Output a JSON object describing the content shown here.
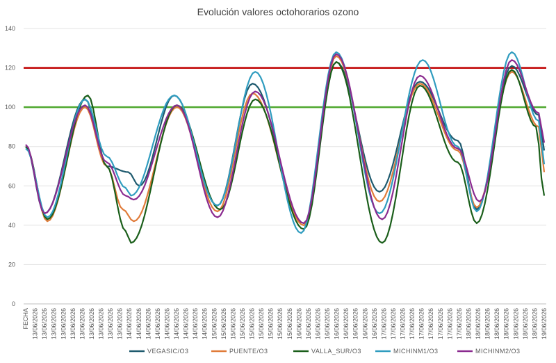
{
  "chart_data": {
    "type": "line",
    "title": "Evolución valores octohorarios ozono",
    "xlabel": "",
    "ylabel": "",
    "ylim": [
      0,
      140
    ],
    "yticks": [
      0,
      20,
      40,
      60,
      80,
      100,
      120,
      140
    ],
    "grid": true,
    "legend_position": "bottom",
    "x_labels": [
      "FECHA",
      "13/06/2026",
      "13/06/2026",
      "13/06/2026",
      "13/06/2026",
      "13/06/2026",
      "13/06/2026",
      "13/06/2026",
      "13/06/2026",
      "13/06/2026",
      "13/06/2026",
      "14/06/2026",
      "14/06/2026",
      "14/06/2026",
      "14/06/2026",
      "14/06/2026",
      "14/06/2026",
      "14/06/2026",
      "14/06/2026",
      "14/06/2026",
      "15/06/2026",
      "15/06/2026",
      "15/06/2026",
      "15/06/2026",
      "15/06/2026",
      "15/06/2026",
      "15/06/2026",
      "15/06/2026",
      "15/06/2026",
      "16/06/2026",
      "16/06/2026",
      "16/06/2026",
      "16/06/2026",
      "16/06/2026",
      "16/06/2026",
      "16/06/2026",
      "16/06/2026",
      "16/06/2026",
      "17/06/2026",
      "17/06/2026",
      "17/06/2026",
      "17/06/2026",
      "17/06/2026",
      "17/06/2026",
      "17/06/2026",
      "17/06/2026",
      "17/06/2026",
      "18/06/2026",
      "18/06/2026",
      "18/06/2026",
      "18/06/2026",
      "18/06/2026",
      "18/06/2026",
      "18/06/2026",
      "18/06/2026",
      "19/06/2026"
    ],
    "n_points": 150,
    "reference_lines": [
      {
        "value": 120,
        "color": "#c00000"
      },
      {
        "value": 100,
        "color": "#4ea72e"
      }
    ],
    "series": [
      {
        "name": "VEGASIC/O3",
        "color": "#1e5a6e",
        "keys": [
          [
            0,
            80
          ],
          [
            7,
            46
          ],
          [
            22,
            104
          ],
          [
            30,
            70
          ],
          [
            38,
            67
          ],
          [
            42,
            60
          ],
          [
            55,
            106
          ],
          [
            71,
            50
          ],
          [
            84,
            112
          ],
          [
            103,
            41
          ],
          [
            115,
            123
          ],
          [
            131,
            57
          ],
          [
            146,
            113
          ],
          [
            160,
            83
          ],
          [
            167,
            48
          ],
          [
            180,
            121
          ],
          [
            190,
            96
          ],
          [
            192,
            78
          ]
        ]
      },
      {
        "name": "PUENTE/O3",
        "color": "#e07b39",
        "keys": [
          [
            0,
            80
          ],
          [
            8,
            42
          ],
          [
            22,
            100
          ],
          [
            30,
            70
          ],
          [
            36,
            48
          ],
          [
            40,
            42
          ],
          [
            56,
            100
          ],
          [
            71,
            47
          ],
          [
            84,
            107
          ],
          [
            103,
            40
          ],
          [
            115,
            126
          ],
          [
            131,
            52
          ],
          [
            146,
            112
          ],
          [
            160,
            78
          ],
          [
            167,
            49
          ],
          [
            180,
            118
          ],
          [
            190,
            90
          ],
          [
            192,
            67
          ]
        ]
      },
      {
        "name": "VALLA_SUR/O3",
        "color": "#1a5e1a",
        "keys": [
          [
            0,
            80
          ],
          [
            8,
            43
          ],
          [
            23,
            106
          ],
          [
            30,
            70
          ],
          [
            37,
            37
          ],
          [
            39,
            31
          ],
          [
            56,
            101
          ],
          [
            72,
            48
          ],
          [
            85,
            104
          ],
          [
            103,
            38
          ],
          [
            115,
            123
          ],
          [
            132,
            31
          ],
          [
            146,
            111
          ],
          [
            160,
            72
          ],
          [
            167,
            41
          ],
          [
            180,
            119
          ],
          [
            189,
            90
          ],
          [
            192,
            55
          ]
        ]
      },
      {
        "name": "MICHINM1/O3",
        "color": "#2f9cbf",
        "keys": [
          [
            0,
            79
          ],
          [
            8,
            44
          ],
          [
            22,
            104
          ],
          [
            30,
            75
          ],
          [
            37,
            59
          ],
          [
            39,
            55
          ],
          [
            55,
            106
          ],
          [
            71,
            50
          ],
          [
            85,
            118
          ],
          [
            102,
            36
          ],
          [
            115,
            128
          ],
          [
            131,
            46
          ],
          [
            147,
            124
          ],
          [
            160,
            80
          ],
          [
            167,
            47
          ],
          [
            180,
            128
          ],
          [
            190,
            93
          ],
          [
            192,
            71
          ]
        ]
      },
      {
        "name": "MICHINM2/O3",
        "color": "#8a2a8f",
        "keys": [
          [
            0,
            81
          ],
          [
            7,
            46
          ],
          [
            22,
            101
          ],
          [
            30,
            72
          ],
          [
            37,
            55
          ],
          [
            40,
            53
          ],
          [
            56,
            101
          ],
          [
            71,
            44
          ],
          [
            85,
            108
          ],
          [
            103,
            41
          ],
          [
            115,
            127
          ],
          [
            132,
            43
          ],
          [
            146,
            116
          ],
          [
            160,
            79
          ],
          [
            168,
            52
          ],
          [
            180,
            124
          ],
          [
            190,
            97
          ],
          [
            192,
            82
          ]
        ]
      }
    ]
  }
}
